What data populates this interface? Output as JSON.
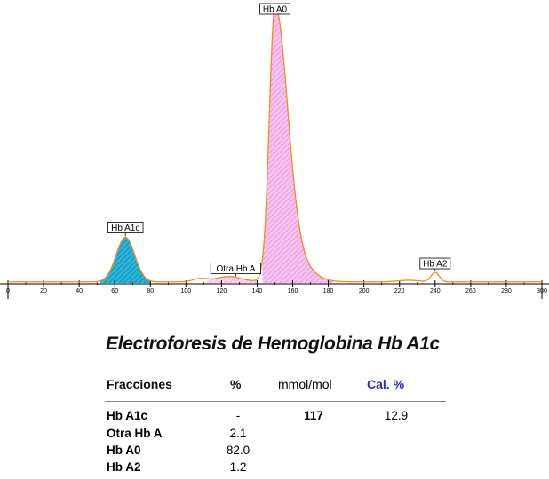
{
  "chart_data": {
    "type": "area",
    "x_ticks": [
      0,
      20,
      40,
      60,
      80,
      100,
      120,
      140,
      160,
      180,
      200,
      220,
      240,
      260,
      280,
      300
    ],
    "xlim": [
      0,
      300
    ],
    "peaks": [
      {
        "label": "Hb A1c",
        "x": 66,
        "height": 0.17,
        "fill": "#29b6d8",
        "hatch": "#0a6fa0"
      },
      {
        "label": "Otra Hb A",
        "x": 128,
        "height": 0.02,
        "fill": "#f2b8e8",
        "hatch": "#e070cc"
      },
      {
        "label": "Hb A0",
        "x": 150,
        "height": 1.0,
        "fill": "#f7c3f0",
        "hatch": "#e488d6"
      },
      {
        "label": "Hb A2",
        "x": 240,
        "height": 0.035,
        "fill": "none",
        "hatch": "none"
      }
    ],
    "colors": {
      "trace": "#f28c1e",
      "axis": "#000000"
    }
  },
  "report": {
    "title": "Electroforesis de Hemoglobina Hb A1c",
    "headers": {
      "fracciones": "Fracciones",
      "pct": "%",
      "mmol": "mmol/mol",
      "cal": "Cal. %"
    },
    "rows": [
      {
        "name": "Hb A1c",
        "pct": "-",
        "mmol": "117",
        "cal": "12.9"
      },
      {
        "name": "Otra Hb A",
        "pct": "2.1",
        "mmol": "",
        "cal": ""
      },
      {
        "name": "Hb A0",
        "pct": "82.0",
        "mmol": "",
        "cal": ""
      },
      {
        "name": "Hb A2",
        "pct": "1.2",
        "mmol": "",
        "cal": ""
      }
    ]
  }
}
